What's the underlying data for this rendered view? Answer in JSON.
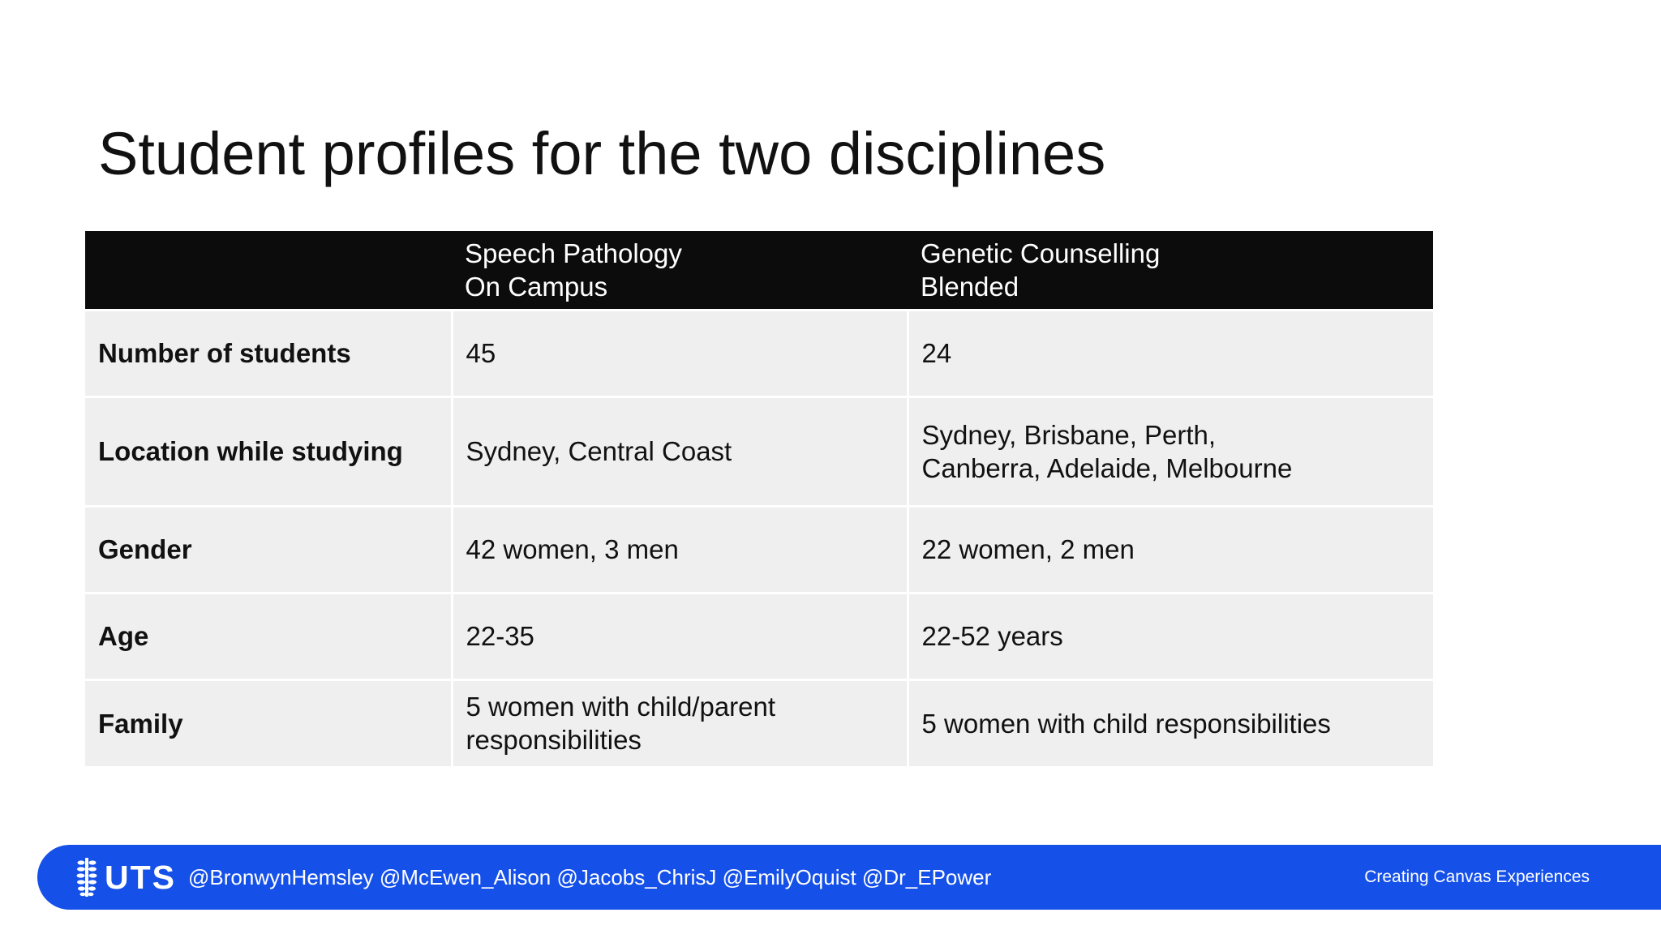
{
  "slide": {
    "title": "Student profiles for the two disciplines"
  },
  "table": {
    "header": [
      "",
      [
        "Speech Pathology",
        "On Campus"
      ],
      [
        "Genetic Counselling",
        "Blended"
      ]
    ],
    "rows": [
      {
        "label": "Number of students",
        "speech_pathology": [
          "45"
        ],
        "genetic_counselling": [
          "24"
        ]
      },
      {
        "label": "Location while studying",
        "speech_pathology": [
          "Sydney, Central Coast"
        ],
        "genetic_counselling": [
          "Sydney, Brisbane, Perth,",
          "Canberra, Adelaide, Melbourne"
        ]
      },
      {
        "label": "Gender",
        "speech_pathology": [
          "42 women, 3 men"
        ],
        "genetic_counselling": [
          "22 women, 2 men"
        ]
      },
      {
        "label": "Age",
        "speech_pathology": [
          "22-35"
        ],
        "genetic_counselling": [
          "22-52 years"
        ]
      },
      {
        "label": "Family",
        "speech_pathology": [
          "5 women with child/parent",
          "responsibilities"
        ],
        "genetic_counselling": [
          "5 women with child responsibilities"
        ]
      }
    ]
  },
  "footer": {
    "logo_text": "UTS",
    "logo_icon": "uts-chromosome-mark-icon",
    "handles": "@BronwynHemsley @McEwen_Alison @Jacobs_ChrisJ @EmilyOquist @Dr_EPower",
    "right_text": "Creating Canvas Experiences",
    "bar_color": "#1550e8"
  },
  "colors": {
    "header_bg": "#0c0c0c",
    "cell_bg": "#efefef",
    "text": "#111111"
  }
}
